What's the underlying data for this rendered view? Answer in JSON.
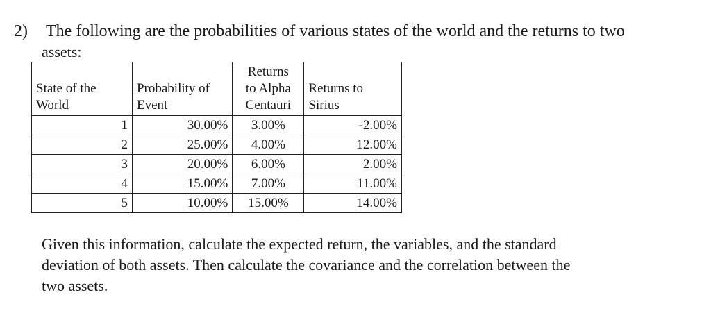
{
  "question": {
    "number": "2)",
    "intro_line1": "The following are the probabilities of various states of the world and the returns to two",
    "intro_line2": "assets:"
  },
  "table": {
    "headers": {
      "state": [
        "State of the",
        "World"
      ],
      "probability": [
        "Probability of",
        "Event"
      ],
      "alpha": [
        "Returns",
        "to Alpha",
        "Centauri"
      ],
      "sirius": [
        "Returns to",
        "Sirius"
      ]
    },
    "rows": [
      {
        "state": "1",
        "probability": "30.00%",
        "alpha": "3.00%",
        "sirius": "-2.00%"
      },
      {
        "state": "2",
        "probability": "25.00%",
        "alpha": "4.00%",
        "sirius": "12.00%"
      },
      {
        "state": "3",
        "probability": "20.00%",
        "alpha": "6.00%",
        "sirius": "2.00%"
      },
      {
        "state": "4",
        "probability": "15.00%",
        "alpha": "7.00%",
        "sirius": "11.00%"
      },
      {
        "state": "5",
        "probability": "10.00%",
        "alpha": "15.00%",
        "sirius": "14.00%"
      }
    ]
  },
  "instructions": {
    "line1": "Given this information, calculate the expected return, the variables, and the standard",
    "line2": "deviation of both assets.  Then calculate the covariance and the correlation between the",
    "line3": "two assets."
  }
}
